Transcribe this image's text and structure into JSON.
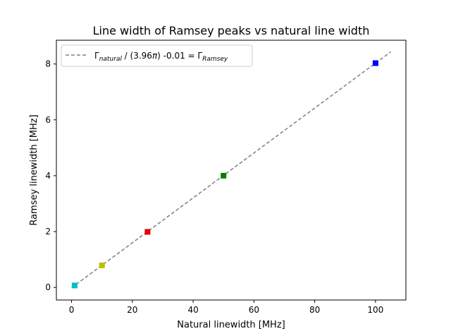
{
  "chart_data": {
    "type": "scatter",
    "title": "Line width of Ramsey peaks vs natural line width",
    "xlabel": "Natural linewidth [MHz]",
    "ylabel": "Ramsey linewidth [MHz]",
    "xlim": [
      -5,
      110
    ],
    "ylim": [
      -0.45,
      8.85
    ],
    "xticks": [
      0,
      20,
      40,
      60,
      80,
      100
    ],
    "yticks": [
      0,
      2,
      4,
      6,
      8
    ],
    "grid": false,
    "legend_position": "top-left",
    "points": [
      {
        "x": 1,
        "y": 0.07,
        "color": "#17becf"
      },
      {
        "x": 10,
        "y": 0.79,
        "color": "#bcbd22"
      },
      {
        "x": 25,
        "y": 1.99,
        "color": "#d62728"
      },
      {
        "x": 50,
        "y": 4.0,
        "color": "#2ca02c"
      },
      {
        "x": 100,
        "y": 8.03,
        "color": "#1f1fff"
      }
    ],
    "point_colors": [
      "#00bfbf",
      "#bfbf00",
      "#e00000",
      "#008000",
      "#0000ff"
    ],
    "fit_line": {
      "x_range": [
        0,
        105
      ],
      "slope": 0.0804,
      "intercept": -0.01,
      "color": "#808080",
      "style": "dashed"
    },
    "legend": {
      "prefix": "Γ",
      "sub1": "natural",
      "middle": " / (3.96",
      "pi": "π",
      "suffix": ") -0.01 = Γ",
      "sub2": "Ramsey"
    }
  }
}
